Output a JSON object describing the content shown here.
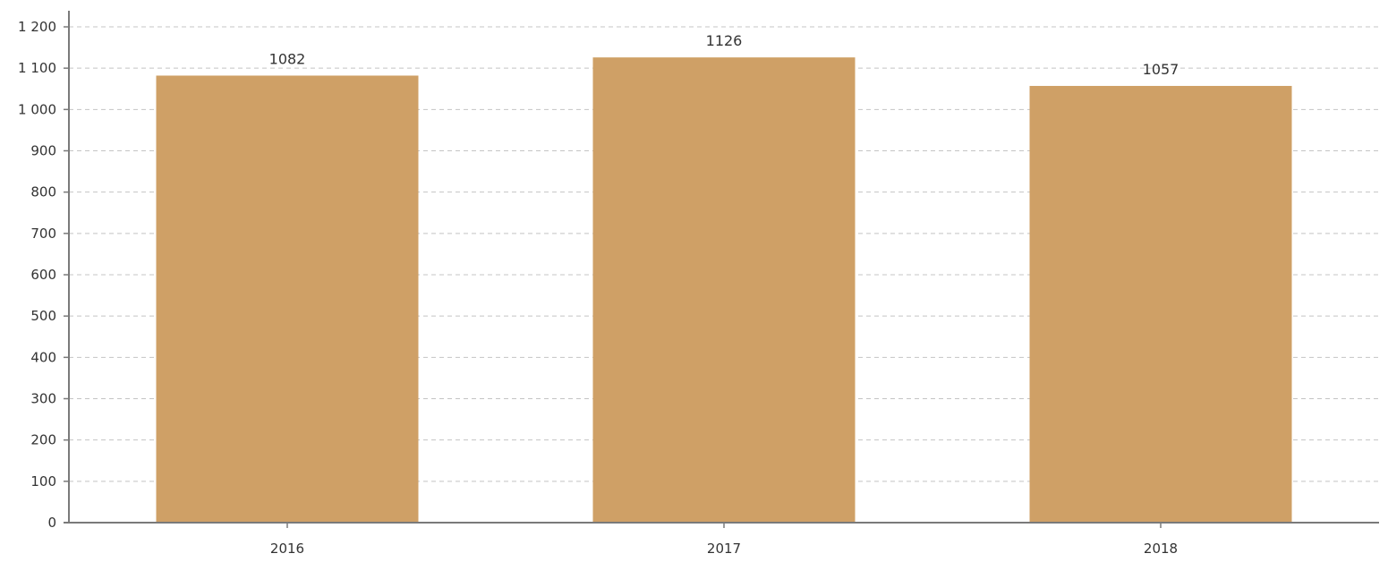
{
  "chart_data": {
    "type": "bar",
    "categories": [
      "2016",
      "2017",
      "2018"
    ],
    "values": [
      1082,
      1126,
      1057
    ],
    "data_labels": [
      "1082",
      "1126",
      "1057"
    ],
    "ylim": [
      0,
      1200
    ],
    "y_ticks": [
      0,
      100,
      200,
      300,
      400,
      500,
      600,
      700,
      800,
      900,
      1000,
      1100,
      1200
    ],
    "y_tick_labels": [
      "0",
      "100",
      "200",
      "300",
      "400",
      "500",
      "600",
      "700",
      "800",
      "900",
      "1 000",
      "1 100",
      "1 200"
    ],
    "grid": true,
    "bar_color": "#CFA066"
  }
}
